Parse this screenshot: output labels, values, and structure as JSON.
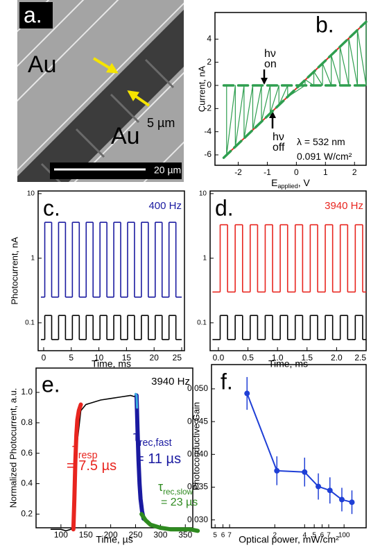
{
  "chart_data": [
    {
      "type": "image",
      "label": "a.",
      "annotations": [
        {
          "text": "Au"
        },
        {
          "text": "Au"
        },
        {
          "text": "5 µm"
        }
      ],
      "scale_bar": "20 µm"
    },
    {
      "type": "line",
      "label": "b.",
      "ylabel": "Current, nA",
      "xlabel": {
        "text": "E",
        "sub": "applied",
        "tail": ", V"
      },
      "xlim": [
        -2.8,
        2.4
      ],
      "ylim": [
        -6.9,
        6.3
      ],
      "xticks": [
        -2,
        -1,
        0,
        1,
        2
      ],
      "yticks": [
        -6,
        -4,
        -2,
        0,
        2,
        4
      ],
      "annotations": [
        {
          "text": "hν"
        },
        {
          "text": "on"
        },
        {
          "text": "hν"
        },
        {
          "text": "off"
        },
        {
          "text": "λ = 532 nm"
        },
        {
          "text": "0.091 W/cm²"
        }
      ],
      "series": [
        {
          "color": "#2e9e4f",
          "x": [
            -2.4,
            -2.4,
            -2.1,
            -2.1,
            -1.8,
            -1.8,
            -1.5,
            -1.5,
            -1.2,
            -1.2,
            -0.9,
            -0.9,
            -0.6,
            -0.6,
            -0.3,
            -0.3,
            0.3,
            0.3,
            0.6,
            0.6,
            0.9,
            0.9,
            1.2,
            1.2,
            1.5,
            1.5,
            1.8,
            1.8,
            2.1,
            2.1,
            2.4,
            2.4
          ],
          "values": [
            0,
            -6.0,
            0,
            -5.3,
            0,
            -4.6,
            0,
            -3.85,
            0,
            -3.1,
            0,
            -2.4,
            0,
            -1.7,
            0,
            -1.0,
            0,
            0.5,
            0,
            1.2,
            0,
            1.9,
            0,
            2.6,
            0,
            3.35,
            0,
            4.1,
            0,
            4.8,
            0,
            5.5
          ]
        },
        {
          "color": "#e8251f",
          "x": [
            -2.5,
            2.4
          ],
          "values": [
            -6.25,
            5.5
          ]
        },
        {
          "color": "#2e9e4f",
          "dash": true,
          "x": [
            -2.5,
            2.4
          ],
          "values": [
            -6.25,
            5.5
          ]
        },
        {
          "color": "#2e9e4f",
          "dash": true,
          "x": [
            -2.5,
            2.4
          ],
          "values": [
            0,
            0
          ]
        }
      ]
    },
    {
      "type": "line",
      "label": "c.",
      "ylabel": "Photocurrent, nA",
      "xlabel": "Time, ms",
      "ylog": true,
      "xlim": [
        -1,
        25.5
      ],
      "ylim": [
        0.037,
        11
      ],
      "xticks": [
        0,
        5,
        10,
        15,
        20,
        25
      ],
      "yticks": [
        0.1,
        1,
        10
      ],
      "annotations": [
        {
          "text": "400 Hz",
          "color": "#1a1aa0"
        }
      ],
      "x": [
        -0.5,
        0.2,
        1.45,
        2.7,
        3.95,
        5.2,
        6.45,
        7.7,
        8.95,
        10.2,
        11.45,
        12.7,
        13.95,
        15.2,
        16.45,
        17.7,
        18.95,
        20.2,
        21.45,
        22.7,
        23.95,
        25
      ],
      "series": [
        {
          "color": "#1a1aa0",
          "step": true,
          "values": [
            0.25,
            3.6,
            0.25,
            3.6,
            0.25,
            3.6,
            0.25,
            3.6,
            0.25,
            3.6,
            0.25,
            3.6,
            0.25,
            3.6,
            0.25,
            3.6,
            0.25,
            3.6,
            0.25,
            3.6,
            0.25,
            0.25
          ]
        },
        {
          "color": "#000000",
          "step": true,
          "values": [
            0.055,
            0.13,
            0.055,
            0.13,
            0.055,
            0.13,
            0.055,
            0.13,
            0.055,
            0.13,
            0.055,
            0.13,
            0.055,
            0.13,
            0.055,
            0.13,
            0.055,
            0.13,
            0.055,
            0.13,
            0.055,
            0.055
          ]
        }
      ]
    },
    {
      "type": "line",
      "label": "d.",
      "xlabel": "Time, ms",
      "ylog": true,
      "xlim": [
        -0.14,
        2.5
      ],
      "ylim": [
        0.037,
        11
      ],
      "xticks": [
        {
          "value": 0,
          "label": "0.0"
        },
        0.5,
        {
          "value": 1,
          "label": "1.0"
        },
        1.5,
        {
          "value": 2,
          "label": "2.0"
        },
        2.5
      ],
      "yticks": [
        0.1,
        1,
        10
      ],
      "annotations": [
        {
          "text": "3940 Hz",
          "color": "#e8251f"
        }
      ],
      "x": [
        -0.1,
        0.03,
        0.155,
        0.284,
        0.409,
        0.538,
        0.663,
        0.792,
        0.917,
        1.046,
        1.171,
        1.3,
        1.425,
        1.554,
        1.679,
        1.808,
        1.933,
        2.062,
        2.187,
        2.316,
        2.441,
        2.5
      ],
      "series": [
        {
          "color": "#e8251f",
          "step": true,
          "values": [
            0.3,
            3.3,
            0.3,
            3.3,
            0.3,
            3.3,
            0.3,
            3.3,
            0.3,
            3.3,
            0.3,
            3.3,
            0.3,
            3.3,
            0.3,
            3.3,
            0.3,
            3.3,
            0.3,
            3.3,
            0.3,
            0.3
          ]
        },
        {
          "color": "#000000",
          "step": true,
          "values": [
            0.055,
            0.13,
            0.055,
            0.13,
            0.055,
            0.13,
            0.055,
            0.13,
            0.055,
            0.13,
            0.055,
            0.13,
            0.055,
            0.13,
            0.055,
            0.13,
            0.055,
            0.13,
            0.055,
            0.13,
            0.055,
            0.055
          ]
        }
      ]
    },
    {
      "type": "line",
      "label": "e.",
      "ylabel": "Normalized Photocurrent, a.u.",
      "xlabel": "Time, µs",
      "xlim": [
        50,
        365
      ],
      "ylim": [
        0.11,
        1.16
      ],
      "xticks": [
        100,
        150,
        200,
        250,
        300,
        350
      ],
      "yticks": [
        0.2,
        0.4,
        0.6,
        0.8,
        {
          "value": 1,
          "label": "1.0"
        }
      ],
      "annotations": [
        {
          "text": "3940 Hz"
        },
        {
          "text": "τ",
          "sub": "resp",
          "color": "#e8251f"
        },
        {
          "text": "= 7.5 µs",
          "color": "#e8251f"
        },
        {
          "text": "τ",
          "sub": "rec,fast",
          "color": "#1a1aa0"
        },
        {
          "text": "= 11 µs",
          "color": "#1a1aa0"
        },
        {
          "text": "τ",
          "sub": "rec,slow",
          "color": "#2e8a1f"
        },
        {
          "text": "= 23 µs",
          "color": "#2e8a1f"
        }
      ],
      "series": [
        {
          "color": "#000000",
          "x": [
            80,
            100,
            110,
            120,
            125,
            128,
            132,
            140,
            150,
            160,
            180,
            200,
            220,
            240,
            250,
            255,
            258,
            262,
            266,
            270,
            280,
            300,
            320,
            340,
            360,
            375
          ],
          "values": [
            0.1,
            0.1,
            0.09,
            0.1,
            0.12,
            0.3,
            0.65,
            0.88,
            0.92,
            0.93,
            0.95,
            0.96,
            0.97,
            0.98,
            0.97,
            0.8,
            0.5,
            0.28,
            0.2,
            0.17,
            0.13,
            0.11,
            0.1,
            0.1,
            0.09,
            0.09
          ]
        },
        {
          "color": "#e8251f",
          "x": [
            125,
            127,
            129,
            131,
            133,
            136,
            140
          ],
          "values": [
            0.1,
            0.3,
            0.55,
            0.72,
            0.82,
            0.88,
            0.92
          ]
        },
        {
          "color": "#1a1aa0",
          "x": [
            252,
            254,
            256,
            258,
            260,
            263,
            266
          ],
          "values": [
            0.98,
            0.75,
            0.55,
            0.4,
            0.3,
            0.22,
            0.17
          ]
        },
        {
          "color": "#3bb0e0",
          "x": [
            250,
            252,
            253
          ],
          "values": [
            0.99,
            0.98,
            0.9
          ]
        },
        {
          "color": "#2e8a1f",
          "x": [
            262,
            270,
            280,
            300,
            320,
            340,
            360,
            375
          ],
          "values": [
            0.2,
            0.16,
            0.13,
            0.11,
            0.1,
            0.1,
            0.1,
            0.09
          ]
        }
      ]
    },
    {
      "type": "scatter",
      "label": "f.",
      "ylabel": "Photoconductive Gain",
      "xlabel": "Optical power, mW/cm²",
      "xlog": true,
      "connect": true,
      "xlim": [
        4.6,
        167
      ],
      "ylim": [
        0.0288,
        0.0537
      ],
      "xticks": [
        5,
        6,
        7,
        {
          "value": 20,
          "label": "2"
        },
        {
          "value": 40,
          "label": "4"
        },
        {
          "value": 50,
          "label": "5"
        },
        {
          "value": 60,
          "label": "6"
        },
        {
          "value": 70,
          "label": "7"
        },
        100
      ],
      "yticks": [
        {
          "value": 0.03,
          "label": "0.030"
        },
        {
          "value": 0.035,
          "label": "0.035"
        },
        {
          "value": 0.04,
          "label": "0.040"
        },
        {
          "value": 0.045,
          "label": "0.045"
        },
        {
          "value": 0.05,
          "label": "0.050"
        }
      ],
      "series": [
        {
          "color": "#1f3fd6",
          "x": [
            10.5,
            21,
            40,
            55,
            72,
            95,
            120
          ],
          "values": [
            0.0493,
            0.0375,
            0.0373,
            0.0351,
            0.0345,
            0.0331,
            0.0327
          ],
          "errors": [
            0.0025,
            0.0022,
            0.0022,
            0.002,
            0.002,
            0.0018,
            0.0018
          ]
        }
      ]
    }
  ]
}
